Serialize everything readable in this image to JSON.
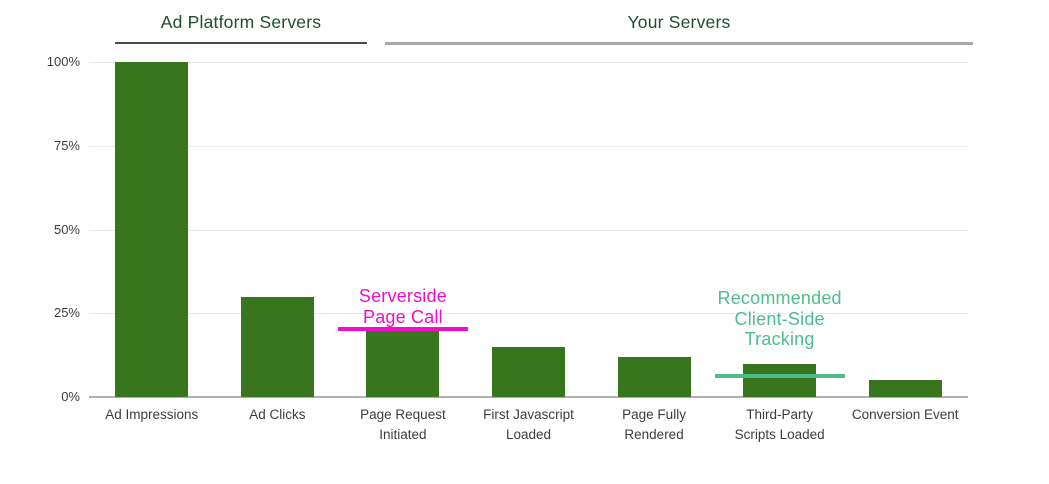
{
  "colors": {
    "background": "#ffffff",
    "bar": "#38761d",
    "section_title": "#1c4e33",
    "axis_text": "#3d3d3d",
    "gridline": "#e8e8e8",
    "axis_line": "#b0b0b0",
    "left_underline": "#4a4a4a",
    "right_underline": "#a8a8a8"
  },
  "sections": {
    "left": {
      "label": "Ad Platform Servers"
    },
    "right": {
      "label": "Your Servers"
    }
  },
  "chart_data": {
    "type": "bar",
    "title": "",
    "xlabel": "",
    "ylabel": "",
    "categories": [
      "Ad Impressions",
      "Ad Clicks",
      "Page Request Initiated",
      "First Javascript Loaded",
      "Page Fully Rendered",
      "Third-Party Scripts Loaded",
      "Conversion Event"
    ],
    "category_display_lines": [
      [
        "Ad Impressions"
      ],
      [
        "Ad Clicks"
      ],
      [
        "Page Request",
        "Initiated"
      ],
      [
        "First Javascript",
        "Loaded"
      ],
      [
        "Page Fully",
        "Rendered"
      ],
      [
        "Third-Party",
        "Scripts Loaded"
      ],
      [
        "Conversion Event"
      ]
    ],
    "values": [
      100,
      30,
      20,
      15,
      12,
      10,
      5
    ],
    "unit": "%",
    "ylim": [
      0,
      100
    ],
    "y_ticks": [
      0,
      25,
      50,
      75,
      100
    ],
    "y_tick_labels": [
      "0%",
      "25%",
      "50%",
      "75%",
      "100%"
    ],
    "grid": true,
    "legend": "none",
    "bar_color": "#38761d",
    "category_groups": [
      {
        "label": "Ad Platform Servers",
        "category_span": [
          "Ad Impressions",
          "Ad Clicks"
        ]
      },
      {
        "label": "Your Servers",
        "category_span": [
          "Page Request Initiated",
          "Conversion Event"
        ]
      }
    ],
    "annotations": [
      {
        "label": "Serverside Page Call",
        "label_lines": [
          "Serverside",
          "Page Call"
        ],
        "at_category": "Page Request Initiated",
        "category_index": 2,
        "marker_value_pct": 20,
        "color": "#f10dcb"
      },
      {
        "label": "Recommended Client-Side Tracking",
        "label_lines": [
          "Recommended",
          "Client-Side",
          "Tracking"
        ],
        "at_category": "Third-Party Scripts Loaded",
        "category_index": 5,
        "marker_value_pct": 6,
        "color": "#4dbd8d"
      }
    ]
  }
}
